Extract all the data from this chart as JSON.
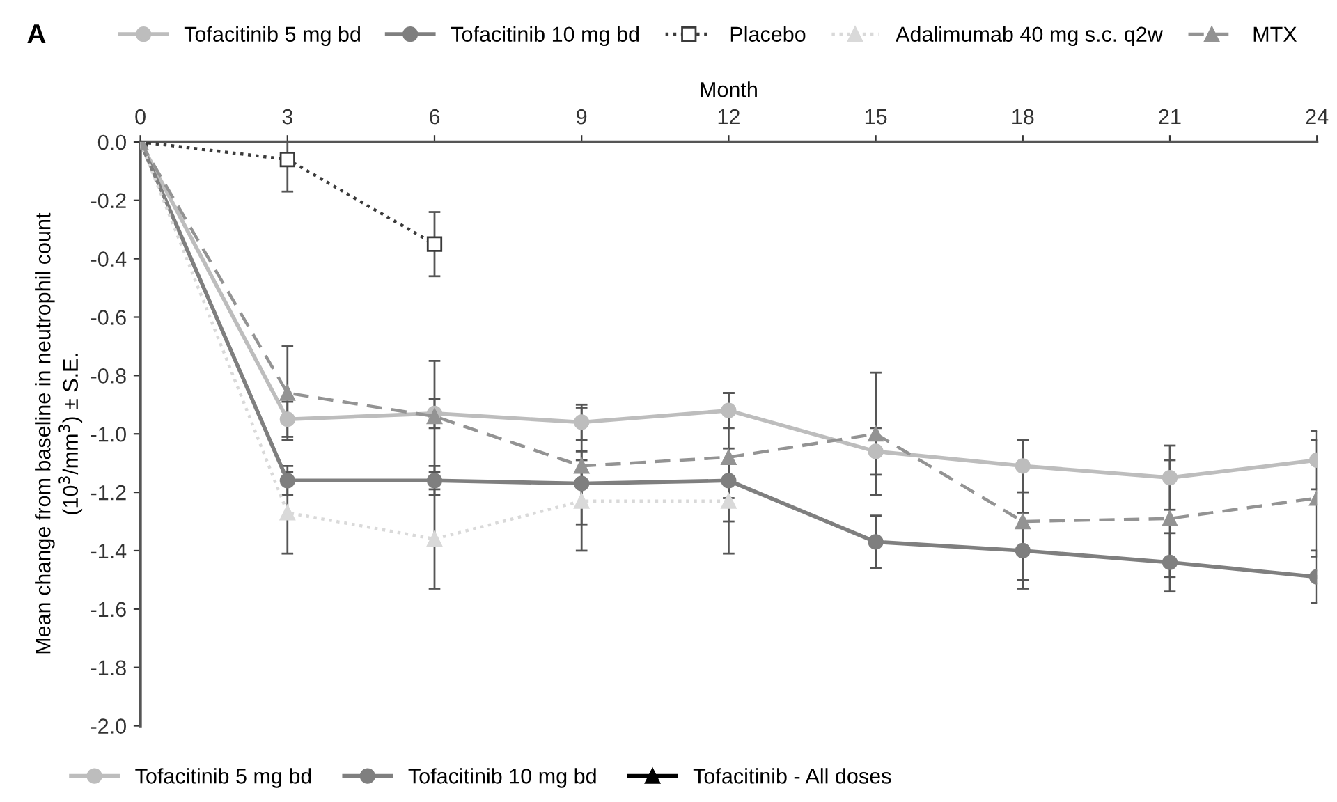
{
  "chart_data": {
    "type": "line",
    "title": "A",
    "xlabel": "Month",
    "ylabel": "Mean change from baseline in neutrophil count\n(10$^{3}$/mm$^{3}$) ± S.E.",
    "x": [
      0,
      3,
      6,
      9,
      12,
      15,
      18,
      21,
      24
    ],
    "xlim": [
      0,
      24
    ],
    "xticks": [
      0,
      3,
      6,
      9,
      12,
      15,
      18,
      21,
      24
    ],
    "ylim": [
      -2.0,
      0.0
    ],
    "yticks": [
      {
        "value": 0.0,
        "label": "0.0"
      },
      {
        "value": -0.2,
        "label": "-0.2"
      },
      {
        "value": -0.4,
        "label": "-0.4"
      },
      {
        "value": -0.6,
        "label": "-0.6"
      },
      {
        "value": -0.8,
        "label": "-0.8"
      },
      {
        "value": -1.0,
        "label": "-1.0"
      },
      {
        "value": -1.2,
        "label": "-1.2"
      },
      {
        "value": -1.4,
        "label": "-1.4"
      },
      {
        "value": -1.6,
        "label": "-1.6"
      },
      {
        "value": -1.8,
        "label": "-1.8"
      },
      {
        "value": -2.0,
        "label": "-2.0"
      }
    ],
    "grid": false,
    "legend": "top",
    "series": [
      {
        "name": "Tofacitinib 5 mg bd",
        "color": "#bdbdbd",
        "marker": "circle",
        "line_style": "solid",
        "values": [
          0,
          -0.95,
          -0.93,
          -0.96,
          -0.92,
          -1.06,
          -1.11,
          -1.15,
          -1.09
        ],
        "errors": [
          null,
          0.06,
          0.05,
          0.06,
          0.06,
          0.08,
          0.09,
          0.11,
          0.1
        ]
      },
      {
        "name": "Tofacitinib 10 mg bd",
        "color": "#7f7f7f",
        "marker": "circle",
        "line_style": "solid",
        "values": [
          0,
          -1.16,
          -1.16,
          -1.17,
          -1.16,
          -1.37,
          -1.4,
          -1.44,
          -1.49
        ],
        "errors": [
          null,
          0.05,
          0.05,
          0.08,
          0.06,
          0.09,
          0.13,
          0.1,
          0.09
        ]
      },
      {
        "name": "Placebo",
        "color": "#3a3a3a",
        "marker": "square",
        "line_style": "dotted",
        "values": [
          0,
          -0.06,
          -0.35,
          null,
          null,
          null,
          null,
          null,
          null
        ],
        "errors": [
          null,
          0.11,
          0.11,
          null,
          null,
          null,
          null,
          null,
          null
        ]
      },
      {
        "name": "Adalimumab 40 mg s.c. q2w",
        "color": "#d9d9d9",
        "marker": "triangle",
        "line_style": "dotted",
        "values": [
          0,
          -1.27,
          -1.36,
          -1.23,
          -1.23,
          null,
          null,
          null,
          null
        ],
        "errors": [
          null,
          0.14,
          0.17,
          0.17,
          0.18,
          null,
          null,
          null,
          null
        ]
      },
      {
        "name": "MTX",
        "color": "#939393",
        "marker": "triangle",
        "line_style": "dashed",
        "values": [
          0,
          -0.86,
          -0.94,
          -1.11,
          -1.08,
          -1.0,
          -1.3,
          -1.29,
          -1.22
        ],
        "errors": [
          null,
          0.16,
          0.19,
          0.2,
          0.22,
          0.21,
          0.2,
          0.2,
          0.2
        ]
      },
      {
        "name": "Tofacitinib - All doses",
        "color": "#000000",
        "marker": "triangle",
        "line_style": "solid",
        "values": [
          null,
          null,
          null,
          null,
          null,
          null,
          null,
          null,
          null
        ]
      }
    ]
  }
}
